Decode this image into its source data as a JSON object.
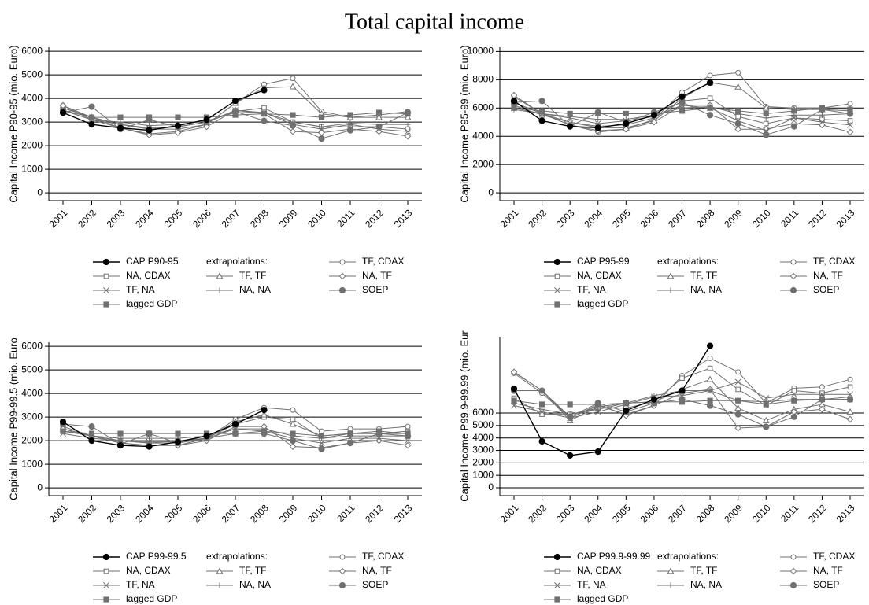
{
  "title": "Total capital income",
  "chart_data": [
    {
      "type": "line",
      "ylabel": "Capital Income P90-95 (mio. Euro)",
      "legend_label": "extrapolations:",
      "categories": [
        "2001",
        "2002",
        "2003",
        "2004",
        "2005",
        "2006",
        "2007",
        "2008",
        "2009",
        "2010",
        "2011",
        "2012",
        "2013"
      ],
      "ylim": [
        -330,
        6170
      ],
      "yticks": [
        0,
        1000,
        2000,
        3000,
        4000,
        5000,
        6000
      ],
      "grid": true,
      "series": [
        {
          "name": "CAP P90-95",
          "color": "#000000",
          "marker": "circle-filled",
          "values": [
            3400,
            2900,
            2750,
            2650,
            2850,
            3100,
            3900,
            4350,
            null,
            null,
            null,
            null,
            null
          ]
        },
        {
          "name": "TF, CDAX",
          "color": "#707070",
          "marker": "circle-open",
          "values": [
            3700,
            3100,
            2750,
            2500,
            2600,
            2900,
            3800,
            4600,
            4850,
            3450,
            3200,
            3300,
            3450
          ]
        },
        {
          "name": "NA, CDAX",
          "color": "#707070",
          "marker": "square-open",
          "values": [
            3600,
            3200,
            2900,
            2700,
            2800,
            3000,
            3450,
            3600,
            3000,
            2800,
            2800,
            2800,
            2700
          ]
        },
        {
          "name": "TF, TF",
          "color": "#707070",
          "marker": "triangle-open",
          "values": [
            3600,
            3200,
            2900,
            2700,
            2700,
            2900,
            3800,
            4450,
            4500,
            3350,
            3200,
            3200,
            3200
          ]
        },
        {
          "name": "NA, TF",
          "color": "#707070",
          "marker": "diamond-open",
          "values": [
            3700,
            3200,
            2750,
            2450,
            2550,
            2800,
            3500,
            3350,
            2600,
            2550,
            2700,
            2600,
            2400
          ]
        },
        {
          "name": "TF, NA",
          "color": "#707070",
          "marker": "x",
          "values": [
            3500,
            3100,
            2900,
            2750,
            2800,
            3000,
            3500,
            3400,
            2900,
            2700,
            2900,
            2700,
            2600
          ]
        },
        {
          "name": "NA, NA",
          "color": "#707070",
          "marker": "plus",
          "values": [
            3500,
            3100,
            3000,
            2850,
            2900,
            3050,
            3400,
            3400,
            3000,
            2800,
            2950,
            2900,
            2900
          ]
        },
        {
          "name": "SOEP",
          "color": "#707070",
          "marker": "circle-filled",
          "values": [
            3400,
            3650,
            2700,
            3100,
            2800,
            3000,
            3450,
            3050,
            2850,
            2300,
            2650,
            2800,
            3400
          ]
        },
        {
          "name": "lagged GDP",
          "color": "#707070",
          "marker": "square-filled",
          "values": [
            3500,
            3200,
            3200,
            3200,
            3200,
            3200,
            3300,
            3350,
            3300,
            3200,
            3300,
            3400,
            3350
          ]
        }
      ]
    },
    {
      "type": "line",
      "ylabel": "Capital Income P95-99 (mio. Euro)",
      "legend_label": "extrapolations:",
      "categories": [
        "2001",
        "2002",
        "2003",
        "2004",
        "2005",
        "2006",
        "2007",
        "2008",
        "2009",
        "2010",
        "2011",
        "2012",
        "2013"
      ],
      "ylim": [
        -550,
        10300
      ],
      "yticks": [
        0,
        2000,
        4000,
        6000,
        8000,
        10000
      ],
      "grid": true,
      "series": [
        {
          "name": "CAP P95-99",
          "color": "#000000",
          "marker": "circle-filled",
          "values": [
            6500,
            5100,
            4700,
            4600,
            4900,
            5500,
            6800,
            7800,
            null,
            null,
            null,
            null,
            null
          ]
        },
        {
          "name": "TF, CDAX",
          "color": "#707070",
          "marker": "circle-open",
          "values": [
            6800,
            5600,
            4800,
            4300,
            4500,
            5200,
            7100,
            8300,
            8500,
            6100,
            6000,
            6000,
            6300
          ]
        },
        {
          "name": "NA, CDAX",
          "color": "#707070",
          "marker": "square-open",
          "values": [
            6200,
            5500,
            5000,
            4700,
            4800,
            5300,
            6500,
            6700,
            5400,
            4900,
            5300,
            5200,
            5100
          ]
        },
        {
          "name": "TF, TF",
          "color": "#707070",
          "marker": "triangle-open",
          "values": [
            6400,
            5600,
            5000,
            4600,
            4600,
            5100,
            6700,
            7800,
            7500,
            6000,
            5900,
            5900,
            5800
          ]
        },
        {
          "name": "NA, TF",
          "color": "#707070",
          "marker": "diamond-open",
          "values": [
            6900,
            5600,
            4800,
            4400,
            4500,
            5000,
            6200,
            6200,
            4500,
            4500,
            4900,
            4800,
            4300
          ]
        },
        {
          "name": "TF, NA",
          "color": "#707070",
          "marker": "x",
          "values": [
            6000,
            5600,
            5300,
            4900,
            5100,
            5400,
            6200,
            6000,
            5100,
            4400,
            5300,
            5000,
            4800
          ]
        },
        {
          "name": "NA, NA",
          "color": "#707070",
          "marker": "plus",
          "values": [
            5900,
            5600,
            5400,
            5200,
            5200,
            5500,
            6000,
            6100,
            5600,
            5300,
            5500,
            5500,
            5600
          ]
        },
        {
          "name": "SOEP",
          "color": "#707070",
          "marker": "circle-filled",
          "values": [
            6400,
            6500,
            4700,
            5700,
            5000,
            5700,
            6400,
            5500,
            4900,
            4100,
            4700,
            5900,
            5600
          ]
        },
        {
          "name": "lagged GDP",
          "color": "#707070",
          "marker": "square-filled",
          "values": [
            6000,
            5800,
            5600,
            5600,
            5600,
            5600,
            5800,
            6000,
            5800,
            5600,
            5800,
            6000,
            5900
          ]
        }
      ]
    },
    {
      "type": "line",
      "ylabel": "Capital Income P99-99.5 (mio. Euro",
      "legend_label": "extrapolations:",
      "categories": [
        "2001",
        "2002",
        "2003",
        "2004",
        "2005",
        "2006",
        "2007",
        "2008",
        "2009",
        "2010",
        "2011",
        "2012",
        "2013"
      ],
      "ylim": [
        -330,
        6170
      ],
      "yticks": [
        0,
        1000,
        2000,
        3000,
        4000,
        5000,
        6000
      ],
      "grid": true,
      "series": [
        {
          "name": "CAP P99-99.5",
          "color": "#000000",
          "marker": "circle-filled",
          "values": [
            2800,
            2000,
            1800,
            1750,
            1950,
            2200,
            2700,
            3300,
            null,
            null,
            null,
            null,
            null
          ]
        },
        {
          "name": "TF, CDAX",
          "color": "#707070",
          "marker": "circle-open",
          "values": [
            2600,
            2200,
            1900,
            1800,
            1800,
            2100,
            2900,
            3400,
            3300,
            2400,
            2500,
            2500,
            2600
          ]
        },
        {
          "name": "NA, CDAX",
          "color": "#707070",
          "marker": "square-open",
          "values": [
            2500,
            2200,
            2000,
            1900,
            2000,
            2100,
            2700,
            3000,
            2900,
            2100,
            2300,
            2300,
            2400
          ]
        },
        {
          "name": "TF, TF",
          "color": "#707070",
          "marker": "triangle-open",
          "values": [
            2500,
            2200,
            2000,
            1900,
            1900,
            2100,
            2800,
            3100,
            2700,
            2200,
            2300,
            2300,
            2300
          ]
        },
        {
          "name": "NA, TF",
          "color": "#707070",
          "marker": "diamond-open",
          "values": [
            2500,
            2200,
            1900,
            1800,
            1800,
            2000,
            2600,
            2600,
            1750,
            1700,
            1900,
            2000,
            1800
          ]
        },
        {
          "name": "TF, NA",
          "color": "#707070",
          "marker": "x",
          "values": [
            2300,
            2100,
            2000,
            1950,
            1950,
            2100,
            2500,
            2400,
            2100,
            1900,
            2100,
            2100,
            2000
          ]
        },
        {
          "name": "NA, NA",
          "color": "#707070",
          "marker": "plus",
          "values": [
            2400,
            2200,
            2100,
            2100,
            2100,
            2200,
            2500,
            2500,
            2200,
            2100,
            2200,
            2200,
            2200
          ]
        },
        {
          "name": "SOEP",
          "color": "#707070",
          "marker": "circle-filled",
          "values": [
            2700,
            2600,
            1850,
            2300,
            1900,
            2100,
            2300,
            2300,
            2000,
            1650,
            1900,
            2300,
            2200
          ]
        },
        {
          "name": "lagged GDP",
          "color": "#707070",
          "marker": "square-filled",
          "values": [
            2400,
            2300,
            2300,
            2300,
            2300,
            2300,
            2300,
            2400,
            2300,
            2200,
            2300,
            2400,
            2300
          ]
        }
      ]
    },
    {
      "type": "line",
      "ylabel": "Capital Income P99.9-99.99 (mio. Eur",
      "legend_label": "extrapolations:",
      "categories": [
        "2001",
        "2002",
        "2003",
        "2004",
        "2005",
        "2006",
        "2007",
        "2008",
        "2009",
        "2010",
        "2011",
        "2012",
        "2013"
      ],
      "ylim": [
        -630,
        12130
      ],
      "yticks": [
        0,
        1000,
        2000,
        3000,
        4000,
        5000,
        6000
      ],
      "grid": true,
      "series": [
        {
          "name": "CAP P99.9-99.99",
          "color": "#000000",
          "marker": "circle-filled",
          "values": [
            7960,
            3730,
            2600,
            2900,
            6200,
            7100,
            7800,
            11400,
            null,
            null,
            null,
            null,
            null
          ]
        },
        {
          "name": "TF, CDAX",
          "color": "#707070",
          "marker": "circle-open",
          "values": [
            9200,
            7600,
            5600,
            6600,
            5900,
            6600,
            9000,
            10400,
            9300,
            6800,
            8000,
            8100,
            8700
          ]
        },
        {
          "name": "NA, CDAX",
          "color": "#707070",
          "marker": "square-open",
          "values": [
            7200,
            5900,
            5900,
            6400,
            6400,
            6900,
            8800,
            9600,
            7900,
            6600,
            7800,
            7600,
            8100
          ]
        },
        {
          "name": "TF, TF",
          "color": "#707070",
          "marker": "triangle-open",
          "values": [
            9300,
            7800,
            5400,
            6500,
            6800,
            6900,
            7900,
            8700,
            6400,
            5400,
            6300,
            6700,
            6100
          ]
        },
        {
          "name": "NA, TF",
          "color": "#707070",
          "marker": "diamond-open",
          "values": [
            9300,
            7800,
            5600,
            6700,
            5800,
            6600,
            7600,
            7900,
            4800,
            4900,
            6100,
            6300,
            5500
          ]
        },
        {
          "name": "TF, NA",
          "color": "#707070",
          "marker": "x",
          "values": [
            6600,
            6100,
            5600,
            6100,
            6700,
            7300,
            7400,
            7800,
            8500,
            7200,
            7500,
            7500,
            7500
          ]
        },
        {
          "name": "NA, NA",
          "color": "#707070",
          "marker": "plus",
          "values": [
            6800,
            6300,
            5900,
            6300,
            6800,
            7400,
            7800,
            7800,
            7000,
            6900,
            7100,
            7100,
            7300
          ]
        },
        {
          "name": "SOEP",
          "color": "#707070",
          "marker": "circle-filled",
          "values": [
            7800,
            7800,
            5700,
            6800,
            6100,
            6800,
            7100,
            6600,
            5900,
            4900,
            5700,
            7100,
            7100
          ]
        },
        {
          "name": "lagged GDP",
          "color": "#707070",
          "marker": "square-filled",
          "values": [
            7000,
            6700,
            6700,
            6700,
            6800,
            6900,
            6900,
            7000,
            7000,
            6700,
            7000,
            7100,
            7100
          ]
        }
      ]
    }
  ]
}
